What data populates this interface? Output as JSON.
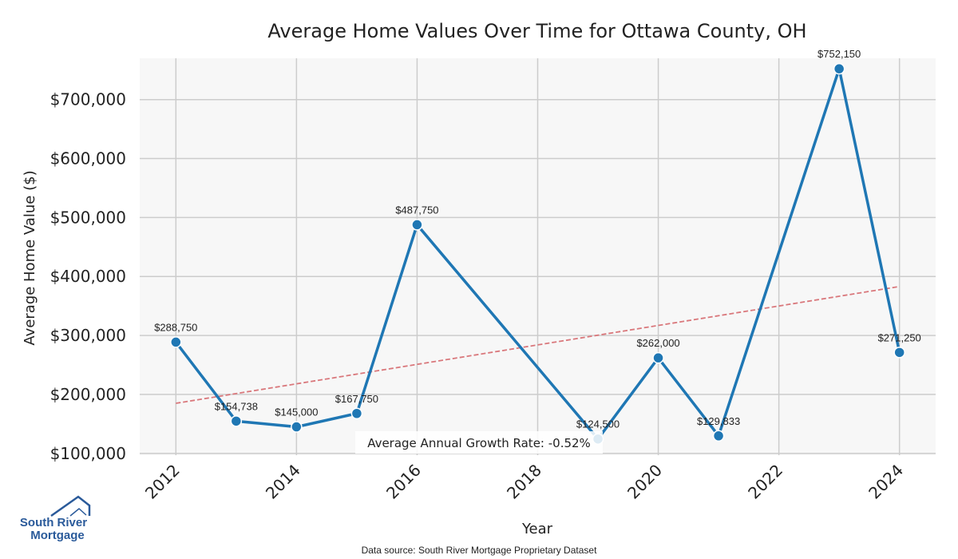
{
  "chart_data": {
    "type": "line",
    "title": "Average Home Values Over Time for Ottawa County, OH",
    "xlabel": "Year",
    "ylabel": "Average Home Value ($)",
    "xlim": [
      2011.4,
      2024.6
    ],
    "ylim": [
      97000,
      770000
    ],
    "x_ticks": [
      2012,
      2014,
      2016,
      2018,
      2020,
      2022,
      2024
    ],
    "y_ticks": [
      100000,
      200000,
      300000,
      400000,
      500000,
      600000,
      700000
    ],
    "y_tick_labels": [
      "$100,000",
      "$200,000",
      "$300,000",
      "$400,000",
      "$500,000",
      "$600,000",
      "$700,000"
    ],
    "grid": true,
    "series": [
      {
        "name": "Average Home Value",
        "color": "#1f77b4",
        "points": [
          {
            "x": 2012,
            "y": 288750,
            "label": "$288,750"
          },
          {
            "x": 2013,
            "y": 154738,
            "label": "$154,738"
          },
          {
            "x": 2014,
            "y": 145000,
            "label": "$145,000"
          },
          {
            "x": 2015,
            "y": 167750,
            "label": "$167,750"
          },
          {
            "x": 2016,
            "y": 487750,
            "label": "$487,750"
          },
          {
            "x": 2019,
            "y": 124500,
            "label": "$124,500"
          },
          {
            "x": 2020,
            "y": 262000,
            "label": "$262,000"
          },
          {
            "x": 2021,
            "y": 129833,
            "label": "$129,833"
          },
          {
            "x": 2023,
            "y": 752150,
            "label": "$752,150"
          },
          {
            "x": 2024,
            "y": 271250,
            "label": "$271,250"
          }
        ]
      }
    ],
    "trend_line": {
      "color": "#d9777b",
      "x": [
        2012,
        2024
      ],
      "y": [
        185000,
        383000
      ]
    },
    "annotation": "Average Annual Growth Rate: -0.52%",
    "source": "Data source: South River Mortgage Proprietary Dataset"
  },
  "logo": {
    "line1": "South River",
    "line2": "Mortgage",
    "color": "#2a5a9a"
  }
}
